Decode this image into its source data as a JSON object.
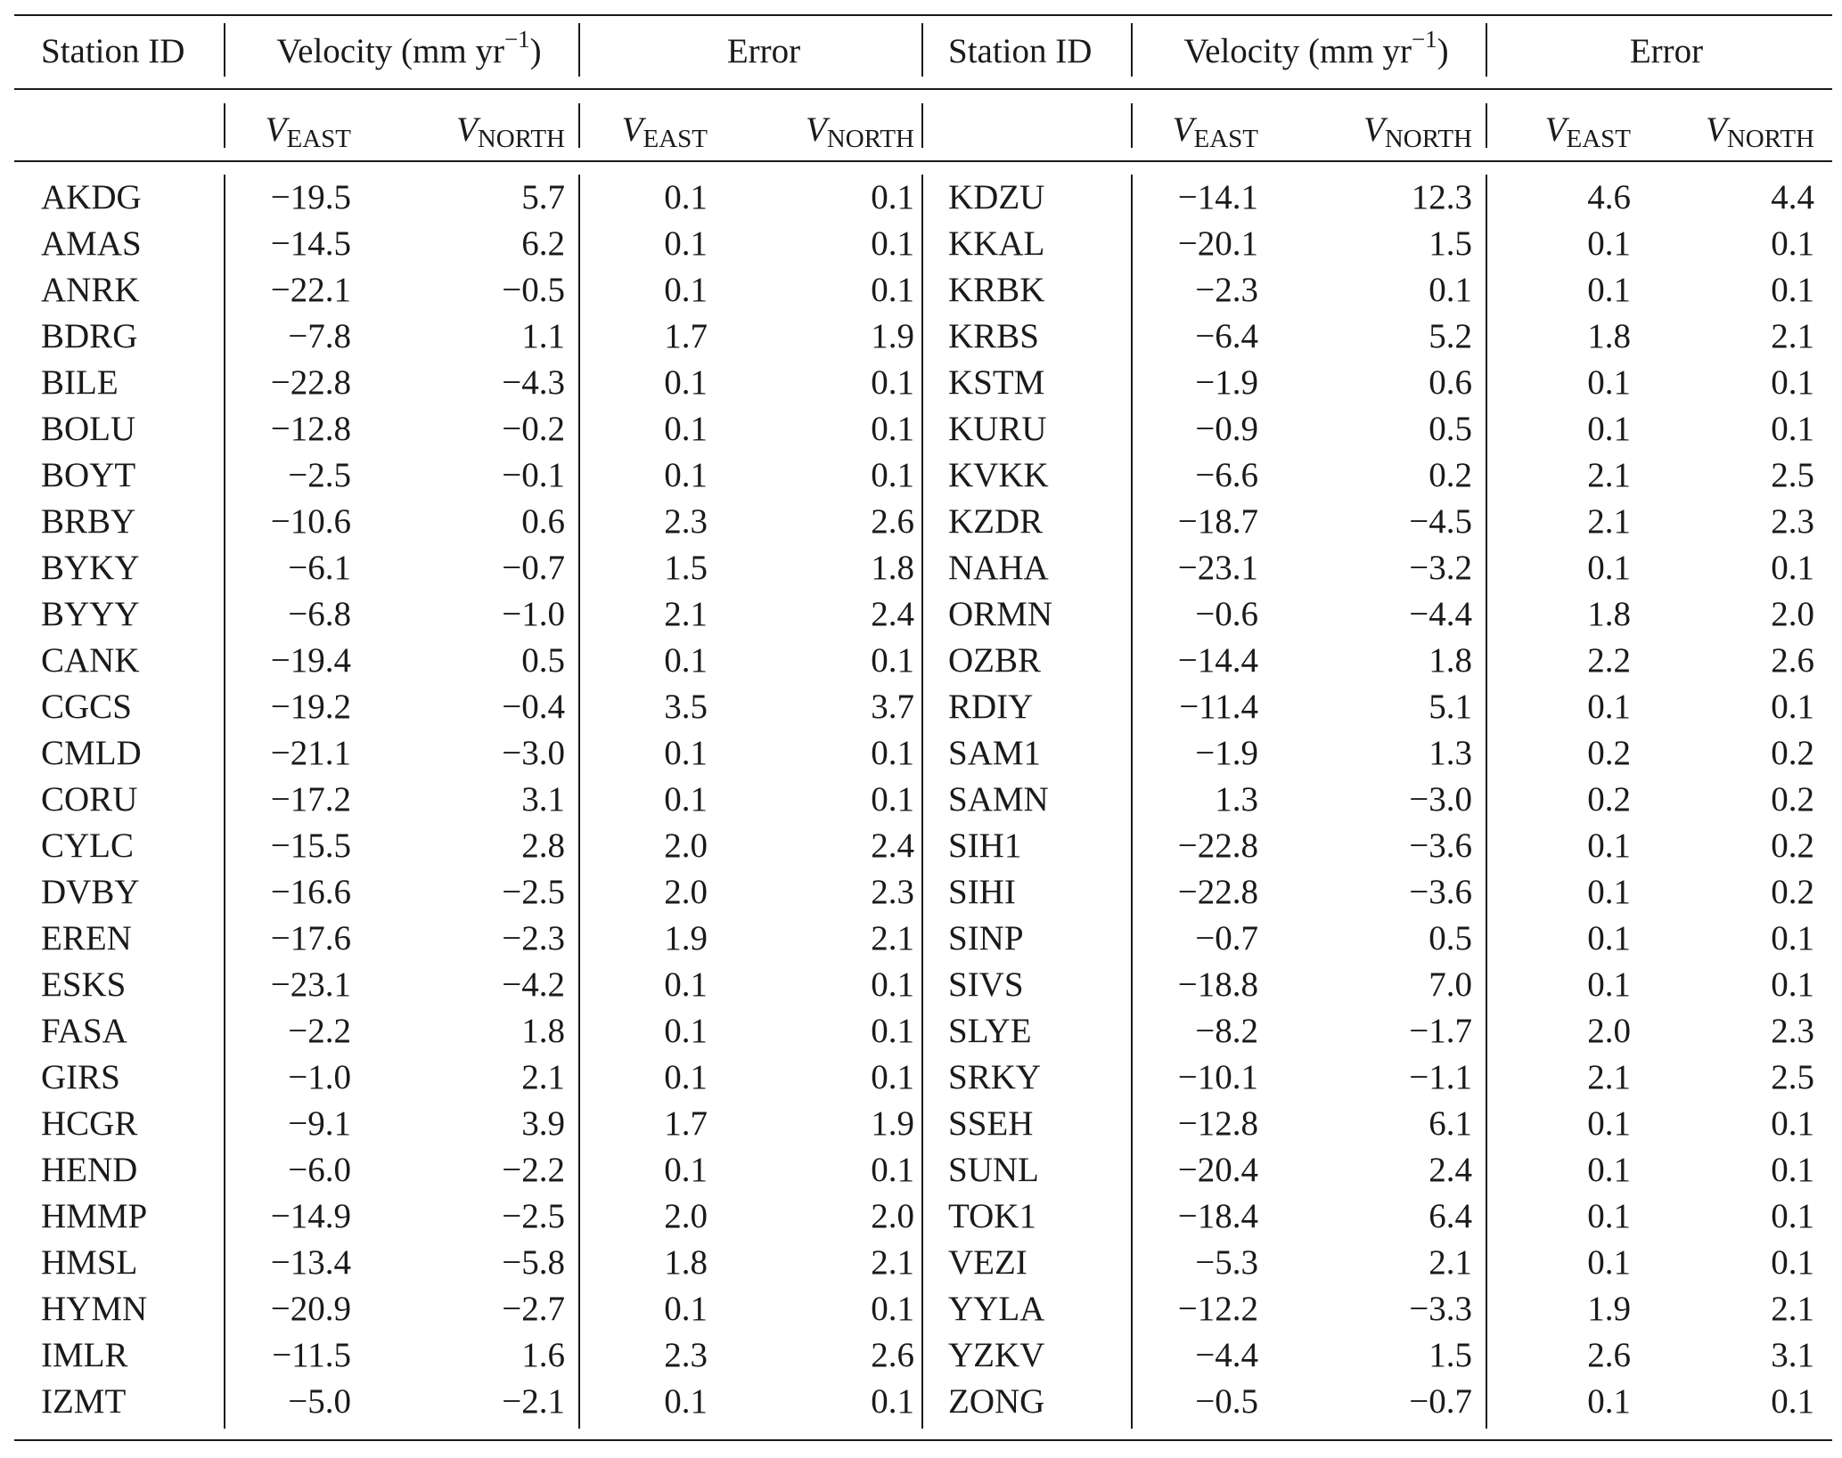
{
  "header": {
    "station_id": "Station ID",
    "velocity": "Velocity (mm yr",
    "velocity_exp": "−1",
    "velocity_close": ")",
    "error": "Error",
    "v_symbol": "V",
    "east_sub": "EAST",
    "north_sub": "NORTH"
  },
  "rows": [
    [
      "AKDG",
      "−19.5",
      "5.7",
      "0.1",
      "0.1",
      "KDZU",
      "−14.1",
      "12.3",
      "4.6",
      "4.4"
    ],
    [
      "AMAS",
      "−14.5",
      "6.2",
      "0.1",
      "0.1",
      "KKAL",
      "−20.1",
      "1.5",
      "0.1",
      "0.1"
    ],
    [
      "ANRK",
      "−22.1",
      "−0.5",
      "0.1",
      "0.1",
      "KRBK",
      "−2.3",
      "0.1",
      "0.1",
      "0.1"
    ],
    [
      "BDRG",
      "−7.8",
      "1.1",
      "1.7",
      "1.9",
      "KRBS",
      "−6.4",
      "5.2",
      "1.8",
      "2.1"
    ],
    [
      "BILE",
      "−22.8",
      "−4.3",
      "0.1",
      "0.1",
      "KSTM",
      "−1.9",
      "0.6",
      "0.1",
      "0.1"
    ],
    [
      "BOLU",
      "−12.8",
      "−0.2",
      "0.1",
      "0.1",
      "KURU",
      "−0.9",
      "0.5",
      "0.1",
      "0.1"
    ],
    [
      "BOYT",
      "−2.5",
      "−0.1",
      "0.1",
      "0.1",
      "KVKK",
      "−6.6",
      "0.2",
      "2.1",
      "2.5"
    ],
    [
      "BRBY",
      "−10.6",
      "0.6",
      "2.3",
      "2.6",
      "KZDR",
      "−18.7",
      "−4.5",
      "2.1",
      "2.3"
    ],
    [
      "BYKY",
      "−6.1",
      "−0.7",
      "1.5",
      "1.8",
      "NAHA",
      "−23.1",
      "−3.2",
      "0.1",
      "0.1"
    ],
    [
      "BYYY",
      "−6.8",
      "−1.0",
      "2.1",
      "2.4",
      "ORMN",
      "−0.6",
      "−4.4",
      "1.8",
      "2.0"
    ],
    [
      "CANK",
      "−19.4",
      "0.5",
      "0.1",
      "0.1",
      "OZBR",
      "−14.4",
      "1.8",
      "2.2",
      "2.6"
    ],
    [
      "CGCS",
      "−19.2",
      "−0.4",
      "3.5",
      "3.7",
      "RDIY",
      "−11.4",
      "5.1",
      "0.1",
      "0.1"
    ],
    [
      "CMLD",
      "−21.1",
      "−3.0",
      "0.1",
      "0.1",
      "SAM1",
      "−1.9",
      "1.3",
      "0.2",
      "0.2"
    ],
    [
      "CORU",
      "−17.2",
      "3.1",
      "0.1",
      "0.1",
      "SAMN",
      "1.3",
      "−3.0",
      "0.2",
      "0.2"
    ],
    [
      "CYLC",
      "−15.5",
      "2.8",
      "2.0",
      "2.4",
      "SIH1",
      "−22.8",
      "−3.6",
      "0.1",
      "0.2"
    ],
    [
      "DVBY",
      "−16.6",
      "−2.5",
      "2.0",
      "2.3",
      "SIHI",
      "−22.8",
      "−3.6",
      "0.1",
      "0.2"
    ],
    [
      "EREN",
      "−17.6",
      "−2.3",
      "1.9",
      "2.1",
      "SINP",
      "−0.7",
      "0.5",
      "0.1",
      "0.1"
    ],
    [
      "ESKS",
      "−23.1",
      "−4.2",
      "0.1",
      "0.1",
      "SIVS",
      "−18.8",
      "7.0",
      "0.1",
      "0.1"
    ],
    [
      "FASA",
      "−2.2",
      "1.8",
      "0.1",
      "0.1",
      "SLYE",
      "−8.2",
      "−1.7",
      "2.0",
      "2.3"
    ],
    [
      "GIRS",
      "−1.0",
      "2.1",
      "0.1",
      "0.1",
      "SRKY",
      "−10.1",
      "−1.1",
      "2.1",
      "2.5"
    ],
    [
      "HCGR",
      "−9.1",
      "3.9",
      "1.7",
      "1.9",
      "SSEH",
      "−12.8",
      "6.1",
      "0.1",
      "0.1"
    ],
    [
      "HEND",
      "−6.0",
      "−2.2",
      "0.1",
      "0.1",
      "SUNL",
      "−20.4",
      "2.4",
      "0.1",
      "0.1"
    ],
    [
      "HMMP",
      "−14.9",
      "−2.5",
      "2.0",
      "2.0",
      "TOK1",
      "−18.4",
      "6.4",
      "0.1",
      "0.1"
    ],
    [
      "HMSL",
      "−13.4",
      "−5.8",
      "1.8",
      "2.1",
      "VEZI",
      "−5.3",
      "2.1",
      "0.1",
      "0.1"
    ],
    [
      "HYMN",
      "−20.9",
      "−2.7",
      "0.1",
      "0.1",
      "YYLA",
      "−12.2",
      "−3.3",
      "1.9",
      "2.1"
    ],
    [
      "IMLR",
      "−11.5",
      "1.6",
      "2.3",
      "2.6",
      "YZKV",
      "−4.4",
      "1.5",
      "2.6",
      "3.1"
    ],
    [
      "IZMT",
      "−5.0",
      "−2.1",
      "0.1",
      "0.1",
      "ZONG",
      "−0.5",
      "−0.7",
      "0.1",
      "0.1"
    ]
  ]
}
